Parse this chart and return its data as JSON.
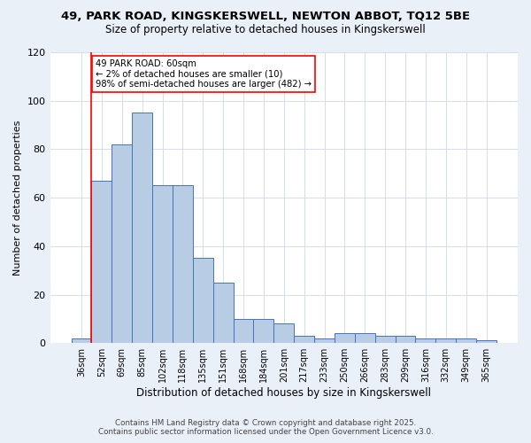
{
  "title1": "49, PARK ROAD, KINGSKERSWELL, NEWTON ABBOT, TQ12 5BE",
  "title2": "Size of property relative to detached houses in Kingskerswell",
  "xlabel": "Distribution of detached houses by size in Kingskerswell",
  "ylabel": "Number of detached properties",
  "categories": [
    "36sqm",
    "52sqm",
    "69sqm",
    "85sqm",
    "102sqm",
    "118sqm",
    "135sqm",
    "151sqm",
    "168sqm",
    "184sqm",
    "201sqm",
    "217sqm",
    "233sqm",
    "250sqm",
    "266sqm",
    "283sqm",
    "299sqm",
    "316sqm",
    "332sqm",
    "349sqm",
    "365sqm"
  ],
  "values": [
    2,
    67,
    82,
    95,
    65,
    65,
    35,
    25,
    10,
    10,
    8,
    3,
    2,
    4,
    4,
    3,
    3,
    2,
    2,
    2,
    1
  ],
  "bar_color": "#b8cce4",
  "bar_edge_color": "#4472c4",
  "annotation_title": "49 PARK ROAD: 60sqm",
  "annotation_line1": "← 2% of detached houses are smaller (10)",
  "annotation_line2": "98% of semi-detached houses are larger (482) →",
  "vline_x": 1,
  "ylim": [
    0,
    120
  ],
  "yticks": [
    0,
    20,
    40,
    60,
    80,
    100,
    120
  ],
  "footer1": "Contains HM Land Registry data © Crown copyright and database right 2025.",
  "footer2": "Contains public sector information licensed under the Open Government Licence v3.0.",
  "bg_color": "#eaf0f8",
  "plot_bg_color": "#ffffff",
  "grid_color": "#d0d8e8"
}
